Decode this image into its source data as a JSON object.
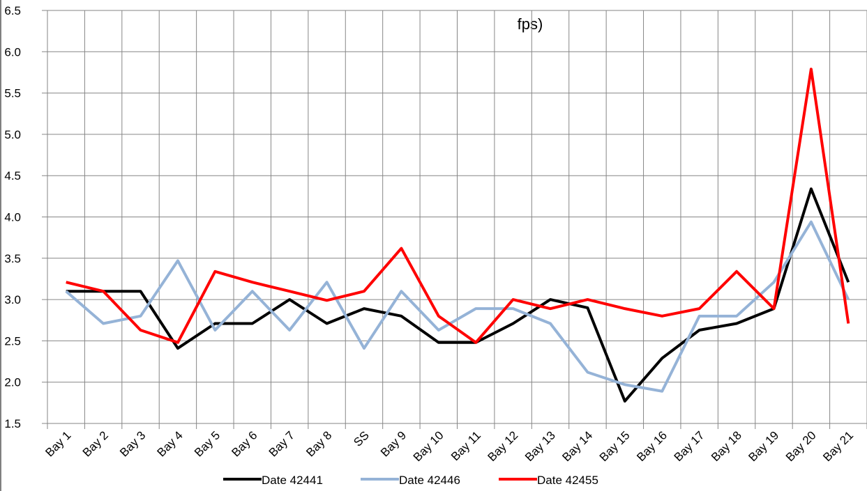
{
  "chart_data": {
    "type": "line",
    "title": "fps)",
    "categories": [
      "Bay 1",
      "Bay 2",
      "Bay 3",
      "Bay 4",
      "Bay 5",
      "Bay 6",
      "Bay 7",
      "Bay 8",
      "SS",
      "Bay 9",
      "Bay 10",
      "Bay 11",
      "Bay 12",
      "Bay 13",
      "Bay 14",
      "Bay 15",
      "Bay 16",
      "Bay 17",
      "Bay 18",
      "Bay 19",
      "Bay 20",
      "Bay 21"
    ],
    "series": [
      {
        "name": "Date 42441",
        "color": "#000000",
        "values": [
          3.1,
          3.1,
          3.1,
          2.41,
          2.71,
          2.71,
          3.0,
          2.71,
          2.89,
          2.8,
          2.48,
          2.48,
          2.71,
          3.0,
          2.9,
          1.77,
          2.29,
          2.63,
          2.71,
          2.89,
          4.34,
          3.21
        ]
      },
      {
        "name": "Date 42446",
        "color": "#95b3d7",
        "values": [
          3.1,
          2.71,
          2.8,
          3.47,
          2.63,
          3.1,
          2.63,
          3.21,
          2.41,
          3.1,
          2.63,
          2.89,
          2.89,
          2.71,
          2.12,
          1.97,
          1.89,
          2.8,
          2.8,
          3.21,
          3.94,
          3.0
        ]
      },
      {
        "name": "Date 42455",
        "color": "#ff0000",
        "values": [
          3.21,
          3.1,
          2.63,
          2.48,
          3.34,
          3.21,
          3.1,
          2.99,
          3.1,
          3.62,
          2.8,
          2.48,
          3.0,
          2.89,
          3.0,
          2.89,
          2.8,
          2.89,
          3.34,
          2.89,
          5.79,
          2.71
        ]
      }
    ],
    "ylim": [
      1.5,
      6.5
    ],
    "yticks": [
      1.5,
      {
        "value": 2,
        "label": "2.0"
      },
      2.5,
      {
        "value": 3,
        "label": "3.0"
      },
      3.5,
      {
        "value": 4,
        "label": "4.0"
      },
      4.5,
      {
        "value": 5,
        "label": "5.0"
      },
      5.5,
      {
        "value": 6,
        "label": "6.0"
      },
      6.5
    ],
    "grid": true,
    "legend": "bottom"
  }
}
